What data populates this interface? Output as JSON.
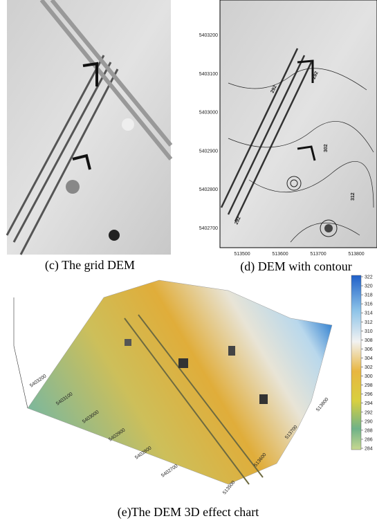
{
  "panel_c": {
    "caption": "(c) The grid DEM"
  },
  "panel_d": {
    "caption": "(d) DEM with contour",
    "y_labels": [
      "5403200",
      "5403100",
      "5403000",
      "5402900",
      "5402800",
      "5402700"
    ],
    "x_labels": [
      "513500",
      "513600",
      "513700",
      "513800"
    ],
    "contour_labels": [
      "292",
      "292",
      "302",
      "312",
      "292"
    ]
  },
  "panel_e": {
    "caption": "(e)The DEM 3D effect chart",
    "north_labels": [
      "5403200",
      "5403100",
      "5403000",
      "5402900",
      "5402800",
      "5402700"
    ],
    "east_labels": [
      "513500",
      "513600",
      "513700",
      "513800"
    ],
    "colorbar_labels": [
      322,
      320,
      318,
      316,
      314,
      312,
      310,
      308,
      306,
      304,
      302,
      300,
      298,
      296,
      294,
      292,
      290,
      288,
      286,
      284
    ]
  }
}
